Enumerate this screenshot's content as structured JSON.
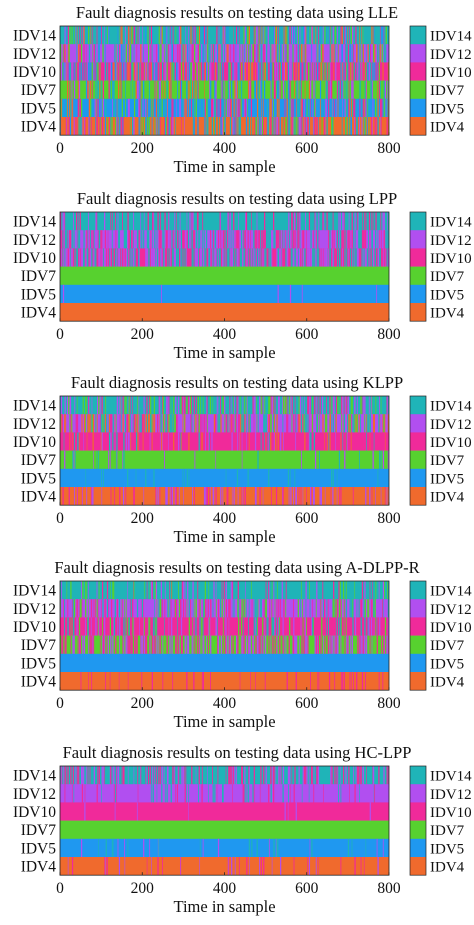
{
  "chart_data": [
    {
      "type": "heatmap",
      "title": "Fault diagnosis results on testing data using LLE",
      "xlabel": "Time in sample",
      "xlim": [
        0,
        800
      ],
      "xticks": [
        0,
        200,
        400,
        600,
        800
      ],
      "rows": [
        {
          "label": "IDV14",
          "color": "#1fb4b8",
          "mix": [
            "IDV12",
            "IDV10",
            "IDV7",
            "IDV5",
            "IDV4"
          ],
          "purity": 0.55
        },
        {
          "label": "IDV12",
          "color": "#b14ff0",
          "mix": [
            "IDV14",
            "IDV10",
            "IDV7",
            "IDV5",
            "IDV4"
          ],
          "purity": 0.5
        },
        {
          "label": "IDV10",
          "color": "#f02a9a",
          "mix": [
            "IDV14",
            "IDV12",
            "IDV7",
            "IDV5",
            "IDV4"
          ],
          "purity": 0.4
        },
        {
          "label": "IDV7",
          "color": "#57d12f",
          "mix": [
            "IDV14",
            "IDV12",
            "IDV10",
            "IDV5",
            "IDV4"
          ],
          "purity": 0.6
        },
        {
          "label": "IDV5",
          "color": "#1f98f0",
          "mix": [
            "IDV14",
            "IDV12",
            "IDV10",
            "IDV7",
            "IDV4"
          ],
          "purity": 0.55
        },
        {
          "label": "IDV4",
          "color": "#f06a2d",
          "mix": [
            "IDV14",
            "IDV12",
            "IDV10",
            "IDV7",
            "IDV5"
          ],
          "purity": 0.55
        }
      ],
      "legend": [
        "IDV14",
        "IDV12",
        "IDV10",
        "IDV7",
        "IDV5",
        "IDV4"
      ],
      "legend_position": "right"
    },
    {
      "type": "heatmap",
      "title": "Fault diagnosis results on testing data using LPP",
      "xlabel": "Time in sample",
      "xlim": [
        0,
        800
      ],
      "xticks": [
        0,
        200,
        400,
        600,
        800
      ],
      "rows": [
        {
          "label": "IDV14",
          "color": "#1fb4b8",
          "mix": [
            "IDV12",
            "IDV10"
          ],
          "purity": 0.7
        },
        {
          "label": "IDV12",
          "color": "#b14ff0",
          "mix": [
            "IDV14",
            "IDV10"
          ],
          "purity": 0.45
        },
        {
          "label": "IDV10",
          "color": "#f02a9a",
          "mix": [
            "IDV14",
            "IDV12"
          ],
          "purity": 0.3
        },
        {
          "label": "IDV7",
          "color": "#57d12f",
          "mix": [],
          "purity": 1.0
        },
        {
          "label": "IDV5",
          "color": "#1f98f0",
          "mix": [
            "IDV12"
          ],
          "purity": 0.99
        },
        {
          "label": "IDV4",
          "color": "#f06a2d",
          "mix": [],
          "purity": 1.0
        }
      ],
      "legend": [
        "IDV14",
        "IDV12",
        "IDV10",
        "IDV7",
        "IDV5",
        "IDV4"
      ],
      "legend_position": "right"
    },
    {
      "type": "heatmap",
      "title": "Fault diagnosis results on testing data using KLPP",
      "xlabel": "Time in sample",
      "xlim": [
        0,
        800
      ],
      "xticks": [
        0,
        200,
        400,
        600,
        800
      ],
      "rows": [
        {
          "label": "IDV14",
          "color": "#1fb4b8",
          "mix": [
            "IDV12",
            "IDV10",
            "IDV7"
          ],
          "purity": 0.6
        },
        {
          "label": "IDV12",
          "color": "#b14ff0",
          "mix": [
            "IDV14",
            "IDV10",
            "IDV4",
            "IDV7"
          ],
          "purity": 0.45
        },
        {
          "label": "IDV10",
          "color": "#f02a9a",
          "mix": [
            "IDV12",
            "IDV14",
            "IDV4"
          ],
          "purity": 0.8
        },
        {
          "label": "IDV7",
          "color": "#57d12f",
          "mix": [
            "IDV14",
            "IDV12"
          ],
          "purity": 0.93
        },
        {
          "label": "IDV5",
          "color": "#1f98f0",
          "mix": [
            "IDV14"
          ],
          "purity": 0.93
        },
        {
          "label": "IDV4",
          "color": "#f06a2d",
          "mix": [
            "IDV10",
            "IDV12"
          ],
          "purity": 0.75
        }
      ],
      "legend": [
        "IDV14",
        "IDV12",
        "IDV10",
        "IDV7",
        "IDV5",
        "IDV4"
      ],
      "legend_position": "right"
    },
    {
      "type": "heatmap",
      "title": "Fault diagnosis results on testing data using A-DLPP-R",
      "xlabel": "Time in sample",
      "xlim": [
        0,
        800
      ],
      "xticks": [
        0,
        200,
        400,
        600,
        800
      ],
      "rows": [
        {
          "label": "IDV14",
          "color": "#1fb4b8",
          "mix": [
            "IDV12",
            "IDV10",
            "IDV7"
          ],
          "purity": 0.8
        },
        {
          "label": "IDV12",
          "color": "#b14ff0",
          "mix": [
            "IDV14",
            "IDV10",
            "IDV7"
          ],
          "purity": 0.55
        },
        {
          "label": "IDV10",
          "color": "#f02a9a",
          "mix": [
            "IDV12",
            "IDV7",
            "IDV14"
          ],
          "purity": 0.75
        },
        {
          "label": "IDV7",
          "color": "#57d12f",
          "mix": [
            "IDV10",
            "IDV12"
          ],
          "purity": 0.5
        },
        {
          "label": "IDV5",
          "color": "#1f98f0",
          "mix": [],
          "purity": 1.0
        },
        {
          "label": "IDV4",
          "color": "#f06a2d",
          "mix": [
            "IDV10"
          ],
          "purity": 0.9
        }
      ],
      "legend": [
        "IDV14",
        "IDV12",
        "IDV10",
        "IDV7",
        "IDV5",
        "IDV4"
      ],
      "legend_position": "right"
    },
    {
      "type": "heatmap",
      "title": "Fault diagnosis results on testing data using HC-LPP",
      "xlabel": "Time in sample",
      "xlim": [
        0,
        800
      ],
      "xticks": [
        0,
        200,
        400,
        600,
        800
      ],
      "rows": [
        {
          "label": "IDV14",
          "color": "#1fb4b8",
          "mix": [
            "IDV12",
            "IDV10"
          ],
          "purity": 0.65
        },
        {
          "label": "IDV12",
          "color": "#b14ff0",
          "mix": [
            "IDV14",
            "IDV10"
          ],
          "purity": 0.85
        },
        {
          "label": "IDV10",
          "color": "#f02a9a",
          "mix": [
            "IDV12"
          ],
          "purity": 0.97
        },
        {
          "label": "IDV7",
          "color": "#57d12f",
          "mix": [],
          "purity": 1.0
        },
        {
          "label": "IDV5",
          "color": "#1f98f0",
          "mix": [
            "IDV12",
            "IDV14"
          ],
          "purity": 0.93
        },
        {
          "label": "IDV4",
          "color": "#f06a2d",
          "mix": [
            "IDV10",
            "IDV12"
          ],
          "purity": 0.88
        }
      ],
      "legend": [
        "IDV14",
        "IDV12",
        "IDV10",
        "IDV7",
        "IDV5",
        "IDV4"
      ],
      "legend_position": "right"
    }
  ]
}
